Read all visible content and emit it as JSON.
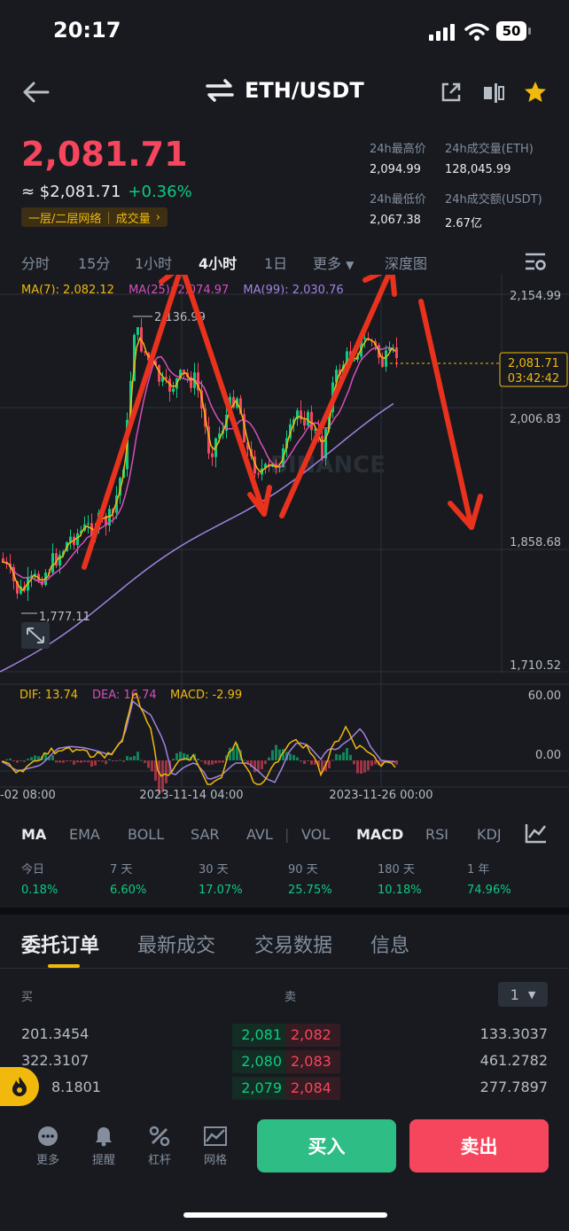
{
  "status": {
    "time": "20:17",
    "battery": "50"
  },
  "header": {
    "pair": "ETH/USDT"
  },
  "ticker": {
    "price": "2,081.71",
    "usd_price": "≈ $2,081.71",
    "change": "+0.36%",
    "network_label": "一层/二层网络",
    "volume_label": "成交量",
    "high_label": "24h最高价",
    "high": "2,094.99",
    "low_label": "24h最低价",
    "low": "2,067.38",
    "vol_eth_label": "24h成交量(ETH)",
    "vol_eth": "128,045.99",
    "vol_usdt_label": "24h成交额(USDT)",
    "vol_usdt": "2.67亿"
  },
  "timeframes": [
    "分时",
    "15分",
    "1小时",
    "4小时",
    "1日",
    "更多",
    "深度图"
  ],
  "ma_legend": {
    "ma7": "MA(7): 2,082.12",
    "ma25": "MA(25): 2,074.97",
    "ma99": "MA(99): 2,030.76"
  },
  "chart_data": {
    "type": "candlestick",
    "y_ticks": [
      "2,154.99",
      "2,006.83",
      "1,858.68",
      "1,710.52"
    ],
    "price_tag": "2,081.71",
    "countdown": "03:42:42",
    "high_marker": "2,136.99",
    "low_marker": "1,777.11",
    "x_ticks": [
      "-02 08:00",
      "2023-11-14 04:00",
      "2023-11-26 00:00"
    ],
    "macd_ticks": [
      "60.00",
      "0.00"
    ],
    "macd_legend": {
      "dif": "DIF: 13.74",
      "dea": "DEA: 16.74",
      "macd": "MACD: -2.99"
    },
    "watermark": "BINANCE"
  },
  "indicators": [
    "MA",
    "EMA",
    "BOLL",
    "SAR",
    "AVL",
    "VOL",
    "MACD",
    "RSI",
    "KDJ"
  ],
  "performance": [
    {
      "label": "今日",
      "value": "0.18%"
    },
    {
      "label": "7 天",
      "value": "6.60%"
    },
    {
      "label": "30 天",
      "value": "17.07%"
    },
    {
      "label": "90 天",
      "value": "25.75%"
    },
    {
      "label": "180 天",
      "value": "10.18%"
    },
    {
      "label": "1 年",
      "value": "74.96%"
    }
  ],
  "orderbook_tabs": [
    "委托订单",
    "最新成交",
    "交易数据",
    "信息"
  ],
  "orderbook": {
    "buy_label": "买",
    "sell_label": "卖",
    "precision": "1",
    "rows": [
      {
        "bid_qty": "201.3454",
        "bid": "2,081",
        "ask": "2,082",
        "ask_qty": "133.3037"
      },
      {
        "bid_qty": "322.3107",
        "bid": "2,080",
        "ask": "2,083",
        "ask_qty": "461.2782"
      },
      {
        "bid_qty": "8.1801",
        "bid": "2,079",
        "ask": "2,084",
        "ask_qty": "277.7897"
      }
    ]
  },
  "bottom_nav": [
    {
      "label": "更多",
      "icon": "more-icon"
    },
    {
      "label": "提醒",
      "icon": "bell-icon"
    },
    {
      "label": "杠杆",
      "icon": "leverage-icon"
    },
    {
      "label": "网格",
      "icon": "grid-icon"
    }
  ],
  "actions": {
    "buy": "买入",
    "sell": "卖出"
  }
}
